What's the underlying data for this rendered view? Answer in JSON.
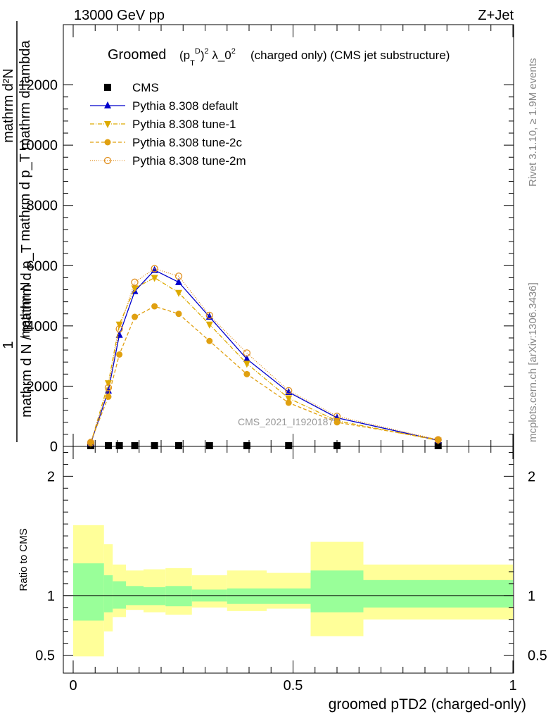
{
  "header": {
    "left": "13000 GeV pp",
    "right": "Z+Jet"
  },
  "side": {
    "rivet": "Rivet 3.1.10, ≥ 1.9M events",
    "mcplots": "mcplots.cern.ch [arXiv:1306.3436]"
  },
  "watermark": "CMS_2021_I1920187",
  "chart_data": [
    {
      "type": "line",
      "title_main": "Groomed",
      "title_rest": "(charged only) (CMS jet substructure)",
      "ylabel_numerator": "mathrm d²N",
      "ylabel_numerator_sub": "mathrm d p_T mathrm d lambda",
      "ylabel_denominator": "mathrm d N / mathrm d p_T",
      "ylabel_one": "1",
      "ylabel_over": "mathrm N",
      "ylim": [
        0,
        14000
      ],
      "y_ticks": [
        0,
        2000,
        4000,
        6000,
        8000,
        10000,
        12000
      ],
      "y_tick_labels": [
        "0",
        "2000",
        "4000",
        "6000",
        "8000",
        "10000",
        "12000"
      ],
      "xlim": [
        0,
        1
      ],
      "legend": [
        "CMS",
        "Pythia 8.308 default",
        "Pythia 8.308 tune-1",
        "Pythia 8.308 tune-2c",
        "Pythia 8.308 tune-2m"
      ],
      "legend_position": "top-left",
      "series": [
        {
          "name": "CMS",
          "color": "#000000",
          "marker": "square",
          "x": [
            0.04,
            0.08,
            0.105,
            0.14,
            0.185,
            0.24,
            0.31,
            0.395,
            0.49,
            0.6,
            0.83
          ],
          "y": [
            0,
            0,
            0,
            0,
            0,
            0,
            0,
            0,
            0,
            0,
            0
          ]
        },
        {
          "name": "Pythia 8.308 default",
          "color": "#0000cc",
          "marker": "triangle-up",
          "dash": "",
          "x": [
            0.04,
            0.08,
            0.105,
            0.14,
            0.185,
            0.24,
            0.31,
            0.395,
            0.49,
            0.6,
            0.83
          ],
          "y": [
            100,
            1850,
            3700,
            5150,
            5850,
            5450,
            4300,
            2900,
            1800,
            950,
            200
          ]
        },
        {
          "name": "Pythia 8.308 tune-1",
          "color": "#ddaa00",
          "marker": "triangle-down",
          "dash": "6,2,1,2",
          "x": [
            0.04,
            0.08,
            0.105,
            0.14,
            0.185,
            0.24,
            0.31,
            0.395,
            0.49,
            0.6,
            0.83
          ],
          "y": [
            100,
            2100,
            4050,
            5250,
            5600,
            5100,
            4050,
            2750,
            1600,
            850,
            200
          ]
        },
        {
          "name": "Pythia 8.308 tune-2c",
          "color": "#e0a010",
          "marker": "circle",
          "dash": "5,3",
          "x": [
            0.04,
            0.08,
            0.105,
            0.14,
            0.185,
            0.24,
            0.31,
            0.395,
            0.49,
            0.6,
            0.83
          ],
          "y": [
            150,
            1650,
            3050,
            4300,
            4650,
            4400,
            3500,
            2400,
            1450,
            800,
            230
          ]
        },
        {
          "name": "Pythia 8.308 tune-2m",
          "color": "#e09020",
          "marker": "circle-open",
          "dash": "1,2",
          "x": [
            0.04,
            0.08,
            0.105,
            0.14,
            0.185,
            0.24,
            0.31,
            0.395,
            0.49,
            0.6,
            0.83
          ],
          "y": [
            120,
            1950,
            3900,
            5450,
            5900,
            5650,
            4350,
            3100,
            1850,
            1000,
            220
          ]
        }
      ]
    },
    {
      "type": "area",
      "ylabel": "Ratio to CMS",
      "xlabel": "groomed pTD2 (charged-only)",
      "ylim": [
        0.35,
        2.25
      ],
      "y_ticks": [
        0.5,
        1,
        2
      ],
      "y_tick_labels": [
        "0.5",
        "1",
        "2"
      ],
      "xlim": [
        0,
        1
      ],
      "x_ticks": [
        0,
        0.5,
        1
      ],
      "x_tick_labels": [
        "0",
        "0.5",
        "1"
      ],
      "reference_line": 1,
      "bins": [
        {
          "x0": 0.0,
          "x1": 0.07,
          "band1": [
            0.79,
            1.27
          ],
          "band2": [
            0.49,
            1.59
          ]
        },
        {
          "x0": 0.07,
          "x1": 0.09,
          "band1": [
            0.86,
            1.17
          ],
          "band2": [
            0.7,
            1.43
          ]
        },
        {
          "x0": 0.09,
          "x1": 0.12,
          "band1": [
            0.89,
            1.12
          ],
          "band2": [
            0.82,
            1.26
          ]
        },
        {
          "x0": 0.12,
          "x1": 0.16,
          "band1": [
            0.92,
            1.08
          ],
          "band2": [
            0.88,
            1.21
          ]
        },
        {
          "x0": 0.16,
          "x1": 0.21,
          "band1": [
            0.92,
            1.07
          ],
          "band2": [
            0.86,
            1.22
          ]
        },
        {
          "x0": 0.21,
          "x1": 0.27,
          "band1": [
            0.91,
            1.08
          ],
          "band2": [
            0.84,
            1.23
          ]
        },
        {
          "x0": 0.27,
          "x1": 0.35,
          "band1": [
            0.95,
            1.05
          ],
          "band2": [
            0.9,
            1.17
          ]
        },
        {
          "x0": 0.35,
          "x1": 0.44,
          "band1": [
            0.93,
            1.06
          ],
          "band2": [
            0.87,
            1.21
          ]
        },
        {
          "x0": 0.44,
          "x1": 0.54,
          "band1": [
            0.93,
            1.06
          ],
          "band2": [
            0.89,
            1.19
          ]
        },
        {
          "x0": 0.54,
          "x1": 0.66,
          "band1": [
            0.86,
            1.21
          ],
          "band2": [
            0.66,
            1.45
          ]
        },
        {
          "x0": 0.66,
          "x1": 1.0,
          "band1": [
            0.9,
            1.13
          ],
          "band2": [
            0.8,
            1.26
          ]
        }
      ],
      "colors": {
        "band1": "#99ff99",
        "band2": "#ffff99"
      }
    }
  ]
}
